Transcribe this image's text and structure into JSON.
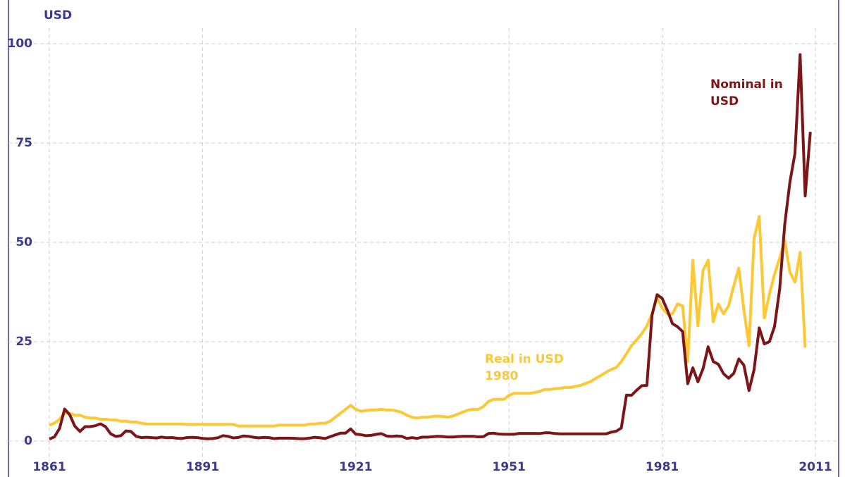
{
  "chart_data": {
    "type": "line",
    "y_label": "USD",
    "xlim": [
      1861,
      2011
    ],
    "ylim": [
      0,
      100
    ],
    "xticks": [
      1861,
      1891,
      1921,
      1951,
      1981,
      2011
    ],
    "yticks": [
      0,
      25,
      50,
      75,
      100
    ],
    "grid": true,
    "x": [
      1861,
      1862,
      1863,
      1864,
      1865,
      1866,
      1867,
      1868,
      1869,
      1870,
      1871,
      1872,
      1873,
      1874,
      1875,
      1876,
      1877,
      1878,
      1879,
      1880,
      1881,
      1882,
      1883,
      1884,
      1885,
      1886,
      1887,
      1888,
      1889,
      1890,
      1891,
      1892,
      1893,
      1894,
      1895,
      1896,
      1897,
      1898,
      1899,
      1900,
      1901,
      1902,
      1903,
      1904,
      1905,
      1906,
      1907,
      1908,
      1909,
      1910,
      1911,
      1912,
      1913,
      1914,
      1915,
      1916,
      1917,
      1918,
      1919,
      1920,
      1921,
      1922,
      1923,
      1924,
      1925,
      1926,
      1927,
      1928,
      1929,
      1930,
      1931,
      1932,
      1933,
      1934,
      1935,
      1936,
      1937,
      1938,
      1939,
      1940,
      1941,
      1942,
      1943,
      1944,
      1945,
      1946,
      1947,
      1948,
      1949,
      1950,
      1951,
      1952,
      1953,
      1954,
      1955,
      1956,
      1957,
      1958,
      1959,
      1960,
      1961,
      1962,
      1963,
      1964,
      1965,
      1966,
      1967,
      1968,
      1969,
      1970,
      1971,
      1972,
      1973,
      1974,
      1975,
      1976,
      1977,
      1978,
      1979,
      1980,
      1981,
      1982,
      1983,
      1984,
      1985,
      1986,
      1987,
      1988,
      1989,
      1990,
      1991,
      1992,
      1993,
      1994,
      1995,
      1996,
      1997,
      1998,
      1999,
      2000,
      2001,
      2002,
      2003,
      2004,
      2005,
      2006,
      2007,
      2008,
      2009,
      2010
    ],
    "series": [
      {
        "name": "Real in USD 1980",
        "color": "#fcc934",
        "values": [
          4.0,
          4.5,
          5.5,
          7.0,
          7.0,
          6.5,
          6.5,
          6.0,
          5.8,
          5.8,
          5.5,
          5.5,
          5.3,
          5.3,
          5.0,
          5.0,
          4.8,
          4.8,
          4.5,
          4.3,
          4.3,
          4.3,
          4.3,
          4.3,
          4.3,
          4.3,
          4.3,
          4.2,
          4.2,
          4.2,
          4.2,
          4.2,
          4.2,
          4.2,
          4.2,
          4.2,
          4.2,
          3.8,
          3.8,
          3.8,
          3.8,
          3.8,
          3.8,
          3.8,
          3.8,
          4.0,
          4.0,
          4.0,
          4.0,
          4.0,
          4.0,
          4.3,
          4.3,
          4.5,
          4.5,
          5.0,
          6.0,
          7.0,
          8.0,
          9.0,
          8.0,
          7.5,
          7.7,
          7.8,
          7.8,
          8.0,
          7.8,
          7.8,
          7.6,
          7.2,
          6.5,
          6.0,
          5.8,
          6.0,
          6.0,
          6.2,
          6.3,
          6.2,
          6.0,
          6.3,
          6.8,
          7.3,
          7.8,
          8.0,
          8.0,
          8.7,
          10.0,
          10.5,
          10.5,
          10.5,
          11.5,
          12.0,
          12.0,
          12.0,
          12.0,
          12.2,
          12.5,
          13.0,
          13.0,
          13.2,
          13.3,
          13.5,
          13.5,
          13.8,
          14.0,
          14.5,
          15.0,
          15.8,
          16.5,
          17.3,
          18.0,
          18.5,
          20.0,
          22.0,
          24.0,
          25.5,
          27.0,
          29.0,
          32.0,
          36.0,
          33.5,
          32.0,
          32.0,
          34.5,
          34.0,
          20.0,
          45.5,
          29.0,
          43.0,
          45.5,
          30.0,
          34.5,
          32.0,
          34.0,
          39.0,
          43.5,
          33.0,
          24.0,
          51.0,
          56.5,
          31.0,
          37.0,
          42.0,
          46.0,
          50.5,
          42.5,
          40.0,
          47.5,
          23.5,
          null
        ]
      },
      {
        "name": "Nominal in USD",
        "color": "#7b1518",
        "values": [
          0.49,
          1.05,
          3.15,
          8.06,
          6.59,
          3.74,
          2.41,
          3.63,
          3.64,
          3.86,
          4.34,
          3.64,
          1.83,
          1.17,
          1.35,
          2.56,
          2.42,
          1.19,
          0.86,
          0.95,
          0.86,
          0.78,
          1.0,
          0.84,
          0.88,
          0.71,
          0.67,
          0.88,
          0.94,
          0.87,
          0.67,
          0.56,
          0.64,
          0.84,
          1.36,
          1.18,
          0.79,
          0.91,
          1.29,
          1.19,
          0.96,
          0.8,
          0.94,
          0.86,
          0.62,
          0.73,
          0.72,
          0.72,
          0.7,
          0.61,
          0.61,
          0.74,
          0.95,
          0.81,
          0.64,
          1.1,
          1.56,
          1.98,
          2.01,
          3.07,
          1.73,
          1.61,
          1.34,
          1.43,
          1.68,
          1.88,
          1.3,
          1.17,
          1.27,
          1.19,
          0.65,
          0.87,
          0.67,
          1.0,
          0.97,
          1.09,
          1.18,
          1.13,
          1.02,
          1.02,
          1.14,
          1.19,
          1.2,
          1.21,
          1.05,
          1.12,
          1.9,
          1.99,
          1.78,
          1.71,
          1.71,
          1.71,
          1.93,
          1.93,
          1.93,
          1.93,
          1.9,
          2.08,
          2.08,
          1.9,
          1.8,
          1.8,
          1.8,
          1.8,
          1.8,
          1.8,
          1.8,
          1.8,
          1.8,
          1.8,
          2.24,
          2.48,
          3.29,
          11.58,
          11.53,
          12.8,
          13.92,
          14.02,
          31.61,
          36.83,
          35.93,
          32.97,
          29.55,
          28.78,
          27.56,
          14.43,
          18.44,
          14.92,
          18.23,
          23.73,
          20.0,
          19.32,
          16.97,
          15.82,
          17.02,
          20.67,
          19.09,
          12.72,
          17.97,
          28.5,
          24.44,
          25.02,
          28.83,
          38.27,
          54.52,
          65.14,
          72.39,
          97.26,
          61.67,
          77.8
        ]
      }
    ]
  }
}
